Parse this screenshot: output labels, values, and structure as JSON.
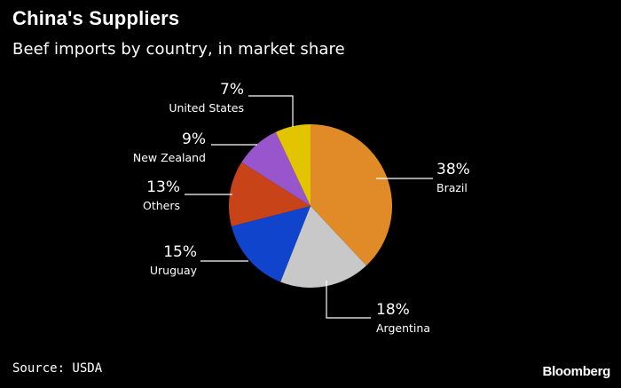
{
  "header": {
    "title": "China's Suppliers",
    "subtitle": "Beef imports by country, in market share"
  },
  "footer": {
    "source": "Source: USDA",
    "brand": "Bloomberg"
  },
  "chart_data": {
    "type": "pie",
    "title": "China's Suppliers",
    "subtitle": "Beef imports by country, in market share",
    "unit": "%",
    "slices": [
      {
        "label": "Brazil",
        "value": 38,
        "display": "38%",
        "color": "#e08a28"
      },
      {
        "label": "Argentina",
        "value": 18,
        "display": "18%",
        "color": "#c8c8c8"
      },
      {
        "label": "Uruguay",
        "value": 15,
        "display": "15%",
        "color": "#1144cc"
      },
      {
        "label": "Others",
        "value": 13,
        "display": "13%",
        "color": "#c84418"
      },
      {
        "label": "New Zealand",
        "value": 9,
        "display": "9%",
        "color": "#9955cc"
      },
      {
        "label": "United States",
        "value": 7,
        "display": "7%",
        "color": "#e3c400"
      }
    ],
    "start": "12 o'clock",
    "direction": "clockwise",
    "legend": "none (leader-line labels)"
  }
}
